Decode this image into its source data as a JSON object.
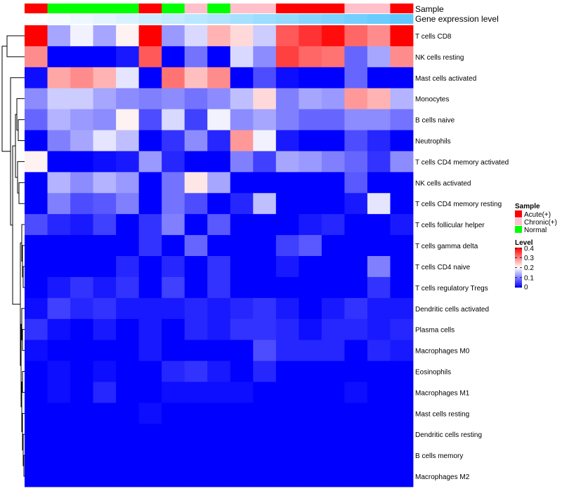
{
  "chart_data": {
    "type": "heatmap",
    "annotation_tracks": [
      "Sample",
      "Gene expression level"
    ],
    "samples": {
      "groups": [
        "Acute(+)",
        "Normal",
        "Normal",
        "Normal",
        "Normal",
        "Acute(+)",
        "Normal",
        "Chronic(+)",
        "Normal",
        "Chronic(+)",
        "Chronic(+)",
        "Acute(+)",
        "Acute(+)",
        "Acute(+)",
        "Chronic(+)",
        "Chronic(+)",
        "Acute(+)"
      ],
      "expression_level": [
        0.0,
        0.03,
        0.06,
        0.09,
        0.12,
        0.16,
        0.19,
        0.22,
        0.25,
        0.28,
        0.31,
        0.34,
        0.38,
        0.41,
        0.44,
        0.47,
        0.5
      ]
    },
    "legend_sample": {
      "title": "Sample",
      "entries": [
        {
          "label": "Acute(+)",
          "color": "#ff0000"
        },
        {
          "label": "Chronic(+)",
          "color": "#ffc0cb"
        },
        {
          "label": "Normal",
          "color": "#00ff00"
        }
      ]
    },
    "legend_level": {
      "title": "Level",
      "ticks": [
        "0.4",
        "0.3",
        "0.2",
        "0.1",
        "0"
      ],
      "tick_values": [
        0.4,
        0.3,
        0.2,
        0.1,
        0
      ],
      "range": [
        0,
        0.4
      ],
      "colors": [
        "#0000ff",
        "#ffffff",
        "#ff0000"
      ]
    },
    "rows": [
      "T cells CD8",
      "NK cells resting",
      "Mast cells activated",
      "Monocytes",
      "B cells naive",
      "Neutrophils",
      "T cells CD4 memory activated",
      "NK cells activated",
      "T cells CD4 memory resting",
      "T cells follicular helper",
      "T cells gamma delta",
      "T cells CD4 naive",
      "T cells regulatory  Tregs",
      "Dendritic cells activated",
      "Plasma cells",
      "Macrophages M0",
      "Eosinophils",
      "Macrophages M1",
      "Mast cells resting",
      "Dendritic cells resting",
      "B cells memory",
      "Macrophages M2"
    ],
    "values": [
      [
        0.4,
        0.13,
        0.19,
        0.13,
        0.21,
        0.4,
        0.12,
        0.17,
        0.26,
        0.23,
        0.16,
        0.33,
        0.36,
        0.39,
        0.32,
        0.29,
        0.4
      ],
      [
        0.29,
        0.0,
        0.0,
        0.0,
        0.02,
        0.33,
        0.0,
        0.09,
        0.0,
        0.17,
        0.11,
        0.35,
        0.32,
        0.31,
        0.08,
        0.13,
        0.29
      ],
      [
        0.01,
        0.27,
        0.29,
        0.26,
        0.18,
        0.0,
        0.31,
        0.25,
        0.29,
        0.0,
        0.06,
        0.01,
        0.0,
        0.0,
        0.08,
        0.0,
        0.0
      ],
      [
        0.11,
        0.16,
        0.16,
        0.13,
        0.11,
        0.1,
        0.11,
        0.09,
        0.11,
        0.15,
        0.23,
        0.1,
        0.13,
        0.12,
        0.28,
        0.26,
        0.14
      ],
      [
        0.08,
        0.14,
        0.12,
        0.11,
        0.21,
        0.06,
        0.17,
        0.05,
        0.19,
        0.11,
        0.13,
        0.1,
        0.08,
        0.08,
        0.11,
        0.11,
        0.09
      ],
      [
        0.0,
        0.1,
        0.13,
        0.18,
        0.15,
        0.0,
        0.04,
        0.11,
        0.03,
        0.28,
        0.19,
        0.02,
        0.0,
        0.0,
        0.06,
        0.03,
        0.0
      ],
      [
        0.21,
        0.0,
        0.0,
        0.01,
        0.02,
        0.12,
        0.03,
        0.0,
        0.0,
        0.1,
        0.05,
        0.13,
        0.12,
        0.1,
        0.08,
        0.04,
        0.11
      ],
      [
        0.0,
        0.14,
        0.11,
        0.14,
        0.12,
        0.0,
        0.09,
        0.22,
        0.13,
        0.0,
        0.0,
        0.0,
        0.0,
        0.0,
        0.07,
        0.0,
        0.0
      ],
      [
        0.0,
        0.1,
        0.06,
        0.07,
        0.1,
        0.0,
        0.09,
        0.06,
        0.0,
        0.03,
        0.15,
        0.0,
        0.0,
        0.0,
        0.02,
        0.18,
        0.0
      ],
      [
        0.06,
        0.03,
        0.02,
        0.05,
        0.0,
        0.04,
        0.1,
        0.0,
        0.07,
        0.0,
        0.0,
        0.0,
        0.02,
        0.03,
        0.0,
        0.0,
        0.02
      ],
      [
        0.0,
        0.0,
        0.0,
        0.0,
        0.0,
        0.04,
        0.0,
        0.08,
        0.0,
        0.0,
        0.0,
        0.05,
        0.07,
        0.0,
        0.0,
        0.0,
        0.0
      ],
      [
        0.0,
        0.0,
        0.0,
        0.0,
        0.03,
        0.0,
        0.03,
        0.0,
        0.04,
        0.0,
        0.0,
        0.02,
        0.0,
        0.0,
        0.0,
        0.1,
        0.0
      ],
      [
        0.0,
        0.02,
        0.04,
        0.02,
        0.04,
        0.0,
        0.05,
        0.0,
        0.04,
        0.0,
        0.0,
        0.0,
        0.0,
        0.0,
        0.0,
        0.04,
        0.0
      ],
      [
        0.01,
        0.05,
        0.03,
        0.04,
        0.02,
        0.02,
        0.02,
        0.03,
        0.02,
        0.03,
        0.04,
        0.02,
        0.0,
        0.02,
        0.04,
        0.02,
        0.02
      ],
      [
        0.04,
        0.01,
        0.0,
        0.02,
        0.0,
        0.02,
        0.0,
        0.03,
        0.02,
        0.04,
        0.04,
        0.03,
        0.01,
        0.03,
        0.03,
        0.02,
        0.03
      ],
      [
        0.01,
        0.0,
        0.0,
        0.0,
        0.0,
        0.02,
        0.0,
        0.0,
        0.0,
        0.0,
        0.06,
        0.03,
        0.03,
        0.03,
        0.0,
        0.03,
        0.02
      ],
      [
        0.0,
        0.01,
        0.0,
        0.01,
        0.0,
        0.0,
        0.03,
        0.04,
        0.02,
        0.0,
        0.03,
        0.0,
        0.0,
        0.0,
        0.0,
        0.0,
        0.0
      ],
      [
        0.0,
        0.01,
        0.0,
        0.03,
        0.0,
        0.0,
        0.01,
        0.01,
        0.01,
        0.01,
        0.0,
        0.0,
        0.0,
        0.0,
        0.01,
        0.0,
        0.0
      ],
      [
        0.0,
        0.0,
        0.0,
        0.0,
        0.0,
        0.01,
        0.0,
        0.0,
        0.0,
        0.0,
        0.0,
        0.0,
        0.0,
        0.0,
        0.0,
        0.0,
        0.0
      ],
      [
        0.0,
        0.0,
        0.0,
        0.0,
        0.0,
        0.0,
        0.0,
        0.0,
        0.0,
        0.0,
        0.0,
        0.0,
        0.0,
        0.0,
        0.0,
        0.0,
        0.0
      ],
      [
        0.0,
        0.0,
        0.0,
        0.0,
        0.0,
        0.0,
        0.0,
        0.0,
        0.0,
        0.0,
        0.0,
        0.0,
        0.0,
        0.0,
        0.0,
        0.0,
        0.0
      ],
      [
        0.0,
        0.0,
        0.0,
        0.0,
        0.0,
        0.0,
        0.0,
        0.0,
        0.0,
        0.0,
        0.0,
        0.0,
        0.0,
        0.0,
        0.0,
        0.0,
        0.0
      ]
    ]
  }
}
